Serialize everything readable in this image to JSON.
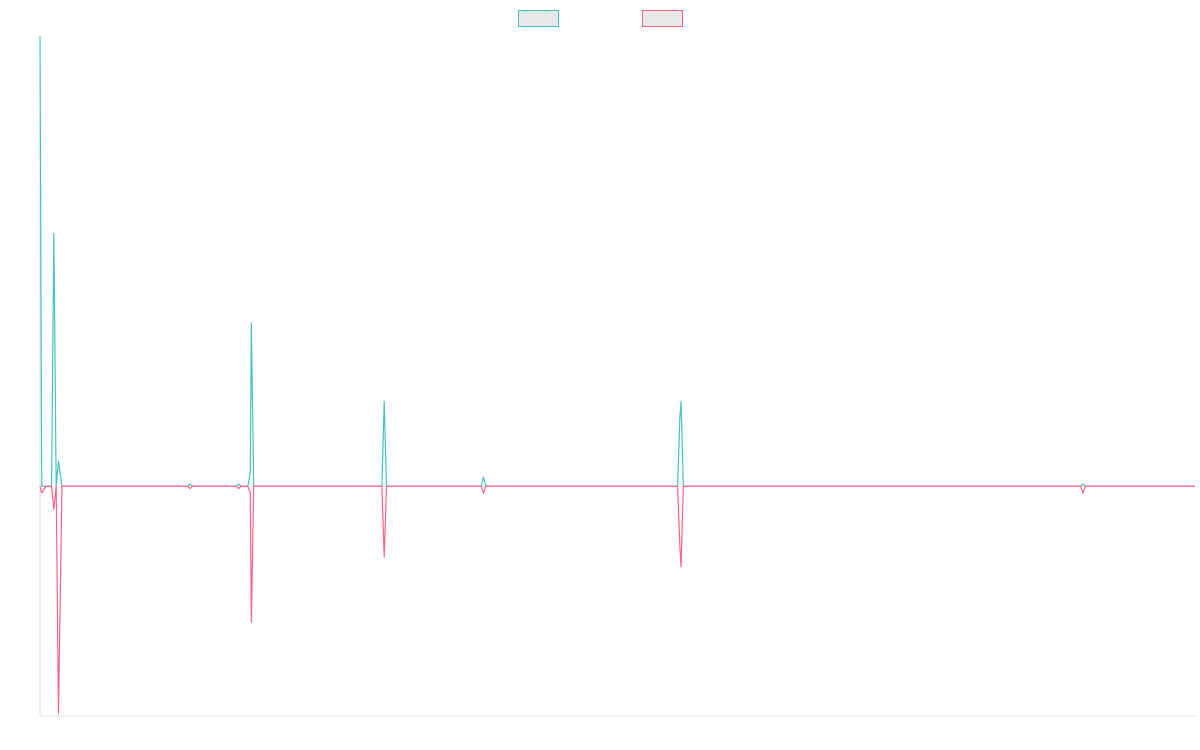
{
  "chart_data": {
    "type": "line",
    "title": "",
    "xlabel": "",
    "ylabel": "",
    "grid": false,
    "legend": "top-center",
    "xlim": [
      0,
      100
    ],
    "ylim": [
      -100,
      196
    ],
    "series": [
      {
        "color": "#4bc0c0",
        "fill": "#e8e8e8",
        "points": [
          [
            0,
            196
          ],
          [
            0.15,
            0
          ],
          [
            0.5,
            0
          ],
          [
            1.0,
            0
          ],
          [
            1.2,
            110
          ],
          [
            1.4,
            0
          ],
          [
            1.6,
            11
          ],
          [
            1.9,
            0
          ],
          [
            2.5,
            0
          ],
          [
            12.8,
            0
          ],
          [
            13.0,
            1
          ],
          [
            13.2,
            0
          ],
          [
            17.0,
            0
          ],
          [
            17.2,
            1
          ],
          [
            17.4,
            0
          ],
          [
            18.0,
            0
          ],
          [
            18.2,
            6
          ],
          [
            18.3,
            71
          ],
          [
            18.5,
            0
          ],
          [
            29.6,
            0
          ],
          [
            29.8,
            37
          ],
          [
            30.0,
            0
          ],
          [
            38.2,
            0
          ],
          [
            38.4,
            4
          ],
          [
            38.6,
            0
          ],
          [
            55.2,
            0
          ],
          [
            55.4,
            30
          ],
          [
            55.5,
            37
          ],
          [
            55.7,
            0
          ],
          [
            90.1,
            0
          ],
          [
            90.3,
            1
          ],
          [
            90.5,
            0
          ],
          [
            100,
            0
          ]
        ]
      },
      {
        "color": "#ff6384",
        "fill": "#e8e8e8",
        "points": [
          [
            0,
            0
          ],
          [
            0.15,
            -3
          ],
          [
            0.5,
            0
          ],
          [
            1.0,
            0
          ],
          [
            1.2,
            -10
          ],
          [
            1.4,
            0
          ],
          [
            1.6,
            -99
          ],
          [
            1.9,
            0
          ],
          [
            2.5,
            0
          ],
          [
            12.8,
            0
          ],
          [
            13.0,
            -1
          ],
          [
            13.2,
            0
          ],
          [
            17.0,
            0
          ],
          [
            17.2,
            -1
          ],
          [
            17.4,
            0
          ],
          [
            18.0,
            0
          ],
          [
            18.2,
            -3
          ],
          [
            18.3,
            -59
          ],
          [
            18.5,
            0
          ],
          [
            29.6,
            0
          ],
          [
            29.8,
            -31
          ],
          [
            30.0,
            0
          ],
          [
            38.2,
            0
          ],
          [
            38.4,
            -3
          ],
          [
            38.6,
            0
          ],
          [
            55.2,
            0
          ],
          [
            55.4,
            -26
          ],
          [
            55.5,
            -35
          ],
          [
            55.7,
            0
          ],
          [
            90.1,
            0
          ],
          [
            90.3,
            -3
          ],
          [
            90.5,
            0
          ],
          [
            100,
            0
          ]
        ]
      }
    ]
  }
}
